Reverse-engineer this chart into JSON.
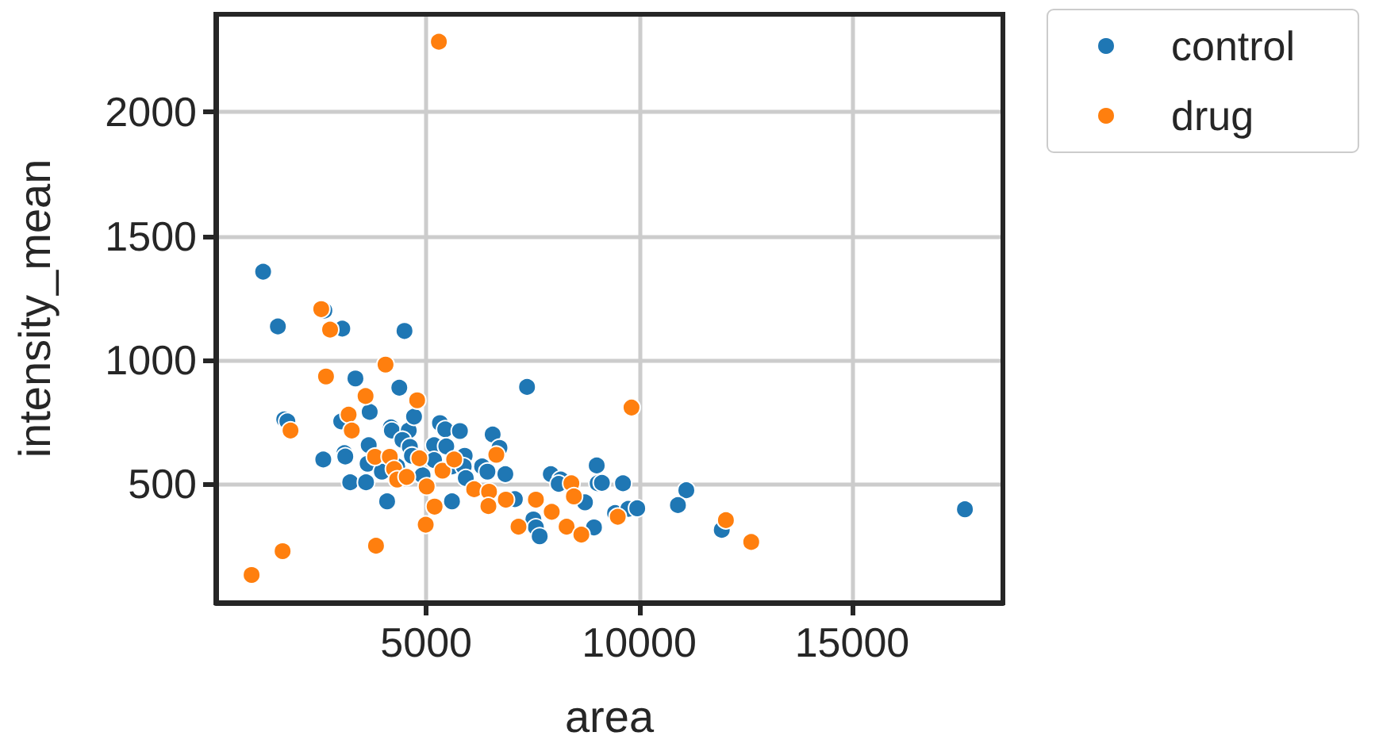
{
  "chart_data": {
    "type": "scatter",
    "xlabel": "area",
    "ylabel": "intensity_mean",
    "xlim": [
      60,
      18540
    ],
    "ylim": [
      20,
      2395
    ],
    "xticks": [
      5000,
      10000,
      15000
    ],
    "yticks": [
      500,
      1000,
      1500,
      2000
    ],
    "grid": true,
    "legend": "top right",
    "marker": "circle",
    "series": [
      {
        "name": "control",
        "color": "#1f77b4",
        "x": [
          1171,
          1517,
          3029,
          2609,
          4490,
          3338,
          4368,
          3673,
          3004,
          1666,
          1740,
          2583,
          3079,
          3100,
          3215,
          3587,
          3650,
          3624,
          4082,
          4170,
          4193,
          4590,
          4714,
          4442,
          4616,
          4665,
          3959,
          4319,
          4914,
          5323,
          5446,
          5791,
          5185,
          5471,
          5185,
          5605,
          5903,
          5880,
          5929,
          5605,
          6312,
          6437,
          6560,
          6720,
          6858,
          7367,
          7081,
          7925,
          8159,
          8110,
          7516,
          7575,
          7664,
          8727,
          8939,
          9003,
          9025,
          9125,
          9620,
          9434,
          9746,
          9954,
          11107,
          10910,
          11939,
          17648
        ],
        "values": [
          1356,
          1135,
          1126,
          1199,
          1117,
          925,
          888,
          790,
          752,
          760,
          752,
          598,
          624,
          610,
          506,
          506,
          656,
          581,
          429,
          728,
          715,
          715,
          771,
          677,
          649,
          613,
          549,
          570,
          534,
          745,
          720,
          713,
          656,
          651,
          596,
          570,
          613,
          570,
          523,
          429,
          570,
          549,
          699,
          645,
          539,
          891,
          438,
          539,
          517,
          500,
          356,
          324,
          288,
          425,
          324,
          574,
          502,
          504,
          502,
          382,
          399,
          401,
          474,
          414,
          314,
          397
        ]
      },
      {
        "name": "drug",
        "color": "#ff7f0e",
        "x": [
          2535,
          2743,
          4045,
          2647,
          4788,
          3576,
          3178,
          3252,
          1814,
          3799,
          4145,
          4245,
          4318,
          4542,
          4839,
          5383,
          5656,
          5011,
          5197,
          4988,
          3821,
          1628,
          900,
          6126,
          6475,
          6460,
          6646,
          6869,
          7167,
          7575,
          7947,
          8296,
          8408,
          8467,
          8642,
          9820,
          9497,
          12036,
          12631,
          5297
        ],
        "values": [
          1205,
          1122,
          981,
          933,
          837,
          854,
          779,
          715,
          715,
          609,
          609,
          560,
          517,
          528,
          603,
          553,
          598,
          489,
          408,
          335,
          250,
          228,
          132,
          478,
          468,
          410,
          617,
          436,
          327,
          436,
          387,
          327,
          502,
          449,
          295,
          808,
          367,
          353,
          265,
          2284
        ]
      }
    ]
  }
}
